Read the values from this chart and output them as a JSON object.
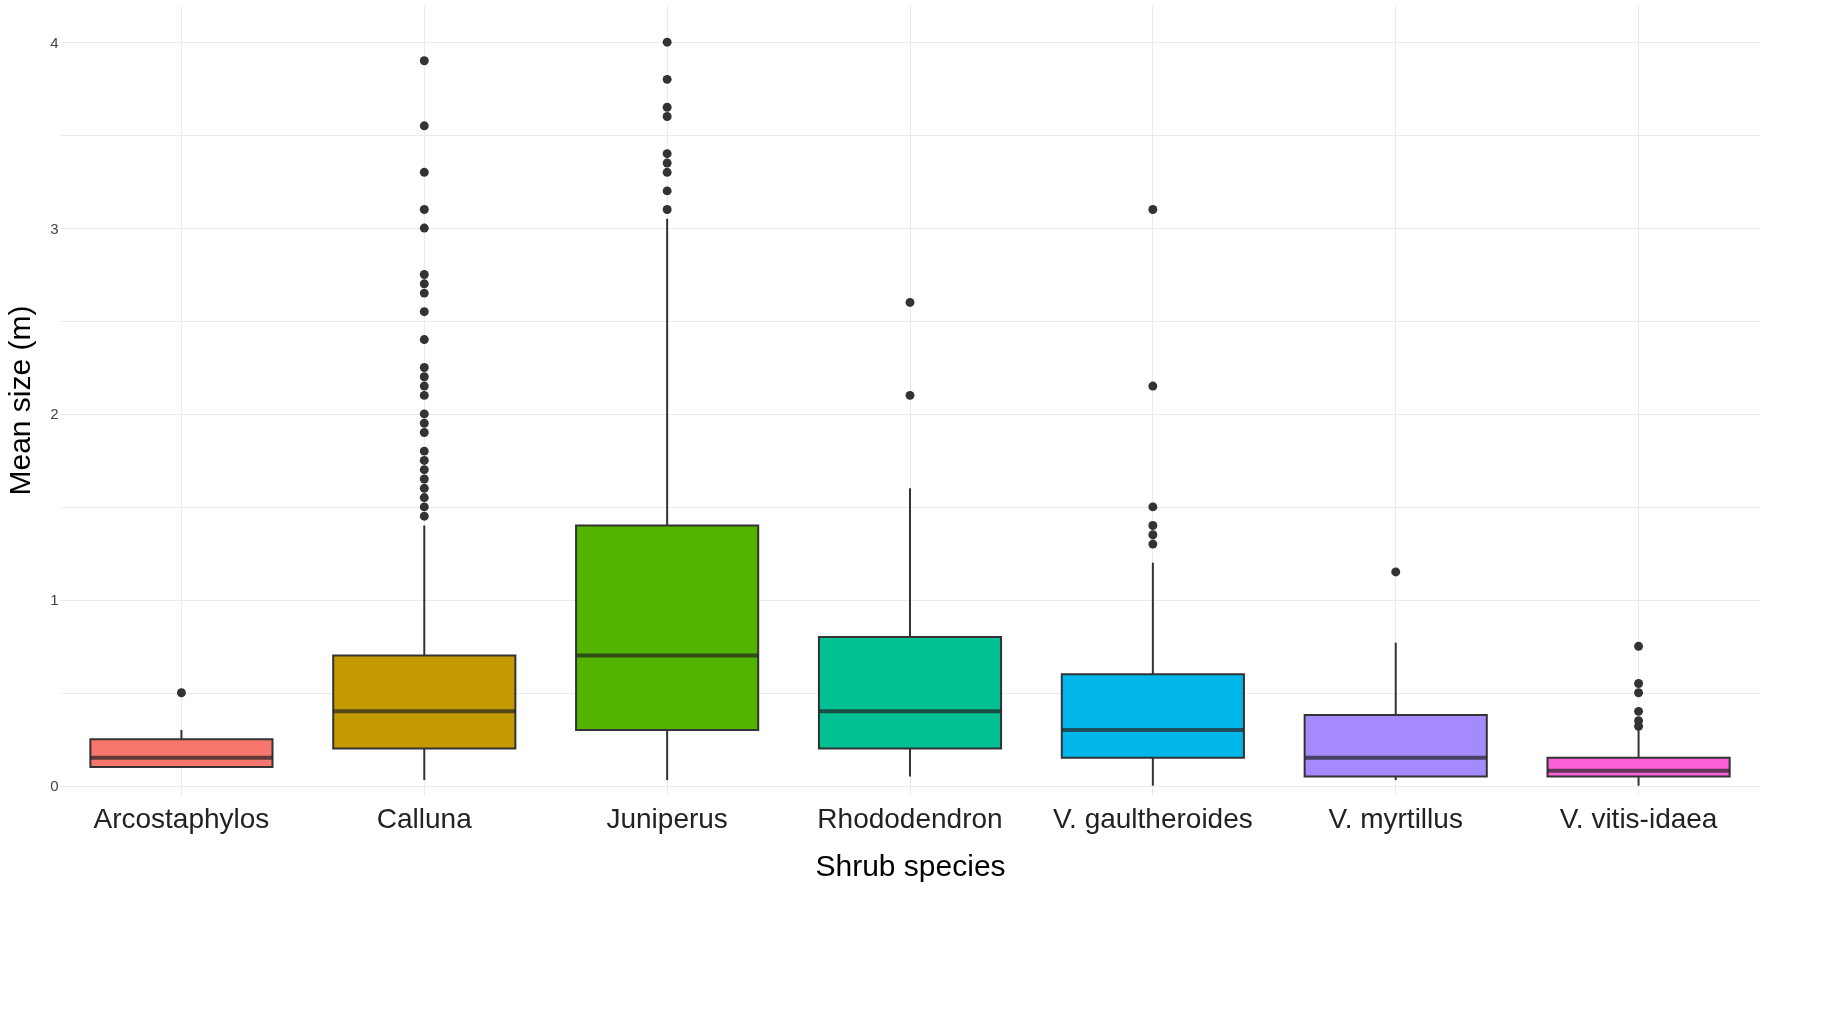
{
  "chart_data": {
    "type": "box",
    "xlabel": "Shrub species",
    "ylabel": "Mean size (m)",
    "categories": [
      "Arcostaphylos",
      "Calluna",
      "Juniperus",
      "Rhododendron",
      "V. gaultheroides",
      "V. myrtillus",
      "V. vitis-idaea"
    ],
    "colors": [
      "#f8766d",
      "#c49a00",
      "#53b400",
      "#00c094",
      "#00b6eb",
      "#a58aff",
      "#fb61d7"
    ],
    "boxes": [
      {
        "low": 0.1,
        "q1": 0.1,
        "median": 0.15,
        "q3": 0.25,
        "high": 0.3,
        "outliers": [
          0.5
        ]
      },
      {
        "low": 0.03,
        "q1": 0.2,
        "median": 0.4,
        "q3": 0.7,
        "high": 1.4,
        "outliers": [
          3.9,
          3.55,
          3.3,
          3.1,
          3.0,
          2.75,
          2.7,
          2.65,
          2.55,
          2.4,
          2.25,
          2.2,
          2.15,
          2.1,
          2.0,
          1.95,
          1.9,
          1.8,
          1.75,
          1.7,
          1.65,
          1.6,
          1.55,
          1.5,
          1.45
        ]
      },
      {
        "low": 0.03,
        "q1": 0.3,
        "median": 0.7,
        "q3": 1.4,
        "high": 3.05,
        "outliers": [
          4.0,
          3.8,
          3.65,
          3.6,
          3.4,
          3.35,
          3.3,
          3.2,
          3.1
        ]
      },
      {
        "low": 0.05,
        "q1": 0.2,
        "median": 0.4,
        "q3": 0.8,
        "high": 1.6,
        "outliers": [
          2.6,
          2.1
        ]
      },
      {
        "low": 0.0,
        "q1": 0.15,
        "median": 0.3,
        "q3": 0.6,
        "high": 1.2,
        "outliers": [
          3.1,
          2.15,
          1.5,
          1.4,
          1.35,
          1.3
        ]
      },
      {
        "low": 0.03,
        "q1": 0.05,
        "median": 0.15,
        "q3": 0.38,
        "high": 0.77,
        "outliers": [
          1.15
        ]
      },
      {
        "low": 0.0,
        "q1": 0.05,
        "median": 0.08,
        "q3": 0.15,
        "high": 0.3,
        "outliers": [
          0.75,
          0.55,
          0.5,
          0.4,
          0.35,
          0.32
        ]
      }
    ],
    "ylim": [
      -0.05,
      4.2
    ],
    "yticks": [
      0,
      {
        "value": 0.5,
        "label": null
      },
      1,
      {
        "value": 1.5,
        "label": null
      },
      2,
      {
        "value": 2.5,
        "label": null
      },
      3,
      {
        "value": 3.5,
        "label": null
      },
      4
    ],
    "grid": true
  }
}
